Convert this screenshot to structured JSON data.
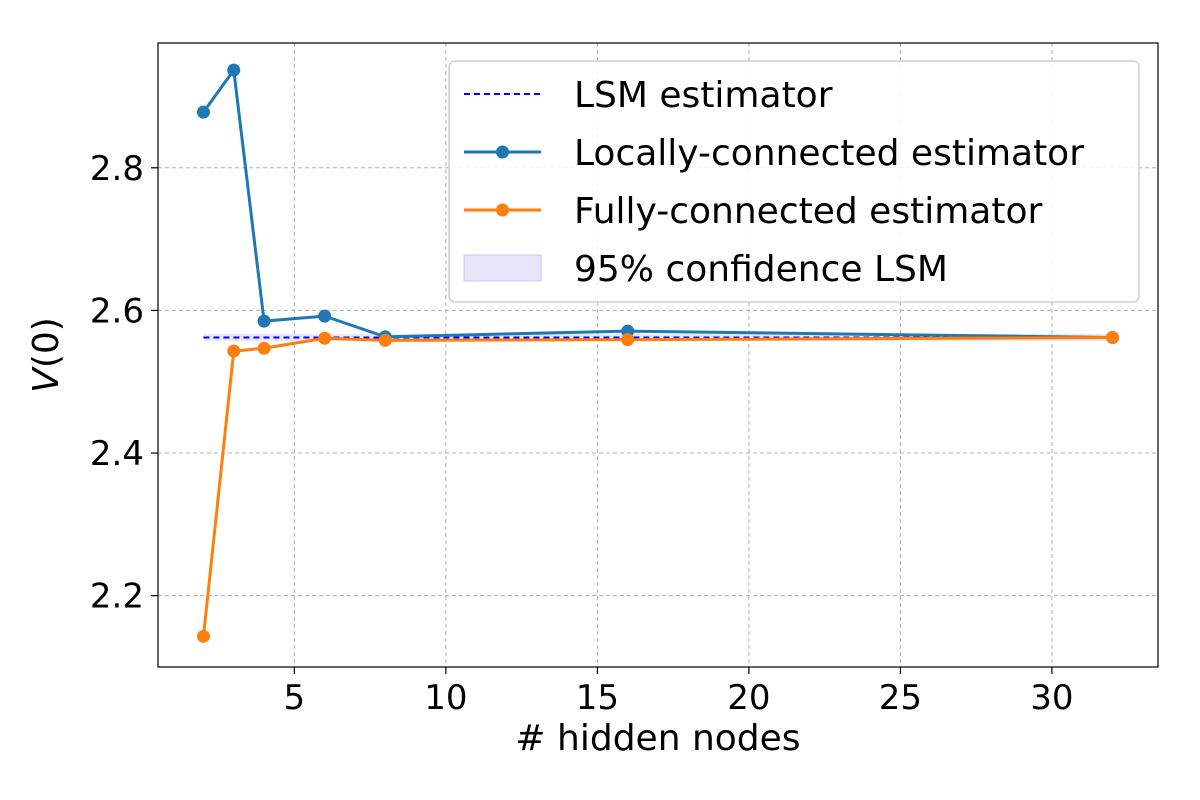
{
  "chart_data": {
    "type": "line",
    "xlabel": "# hidden nodes",
    "ylabel": "V(0)",
    "xlim": [
      0.5,
      33.5
    ],
    "ylim": [
      2.1,
      2.975
    ],
    "xticks": [
      5,
      10,
      15,
      20,
      25,
      30
    ],
    "yticks": [
      2.2,
      2.4,
      2.6,
      2.8
    ],
    "grid": true,
    "legend_position": "upper right",
    "lsm": {
      "name": "LSM estimator",
      "x": [
        2,
        32
      ],
      "value": 2.562,
      "color": "#0000ff"
    },
    "confidence": {
      "name": "95% confidence LSM",
      "x": [
        2,
        32
      ],
      "lower": 2.557,
      "upper": 2.567,
      "color": "#e6e6fa"
    },
    "series": [
      {
        "name": "Locally-connected estimator",
        "color": "#1f77b4",
        "x": [
          2,
          3,
          4,
          6,
          8,
          16,
          32
        ],
        "values": [
          2.878,
          2.937,
          2.585,
          2.592,
          2.563,
          2.571,
          2.562
        ]
      },
      {
        "name": "Fully-connected estimator",
        "color": "#ff7f0e",
        "x": [
          2,
          3,
          4,
          6,
          8,
          16,
          32
        ],
        "values": [
          2.143,
          2.543,
          2.547,
          2.561,
          2.558,
          2.559,
          2.562
        ]
      }
    ]
  }
}
